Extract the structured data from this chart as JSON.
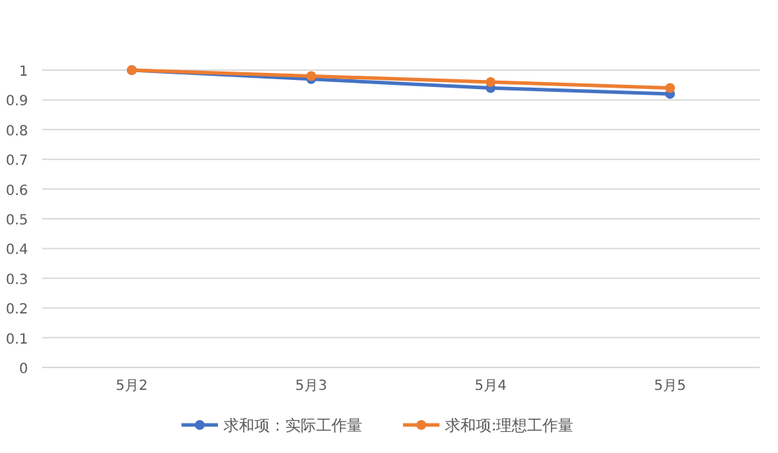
{
  "chart_data": {
    "type": "line",
    "categories": [
      "5月2",
      "5月3",
      "5月4",
      "5月5"
    ],
    "series": [
      {
        "name": "求和项：实际工作量",
        "color": "#4472c4",
        "values": [
          1,
          0.97,
          0.94,
          0.92
        ]
      },
      {
        "name": "求和项:理想工作量",
        "color": "#ed7d31",
        "values": [
          1,
          0.98,
          0.96,
          0.94
        ]
      }
    ],
    "ylim": [
      0,
      1
    ],
    "yticks": [
      0,
      0.1,
      0.2,
      0.3,
      0.4,
      0.5,
      0.6,
      0.7,
      0.8,
      0.9,
      1
    ],
    "grid": "y",
    "legend": "bottom",
    "marker": "circle",
    "line_style": "solid"
  }
}
